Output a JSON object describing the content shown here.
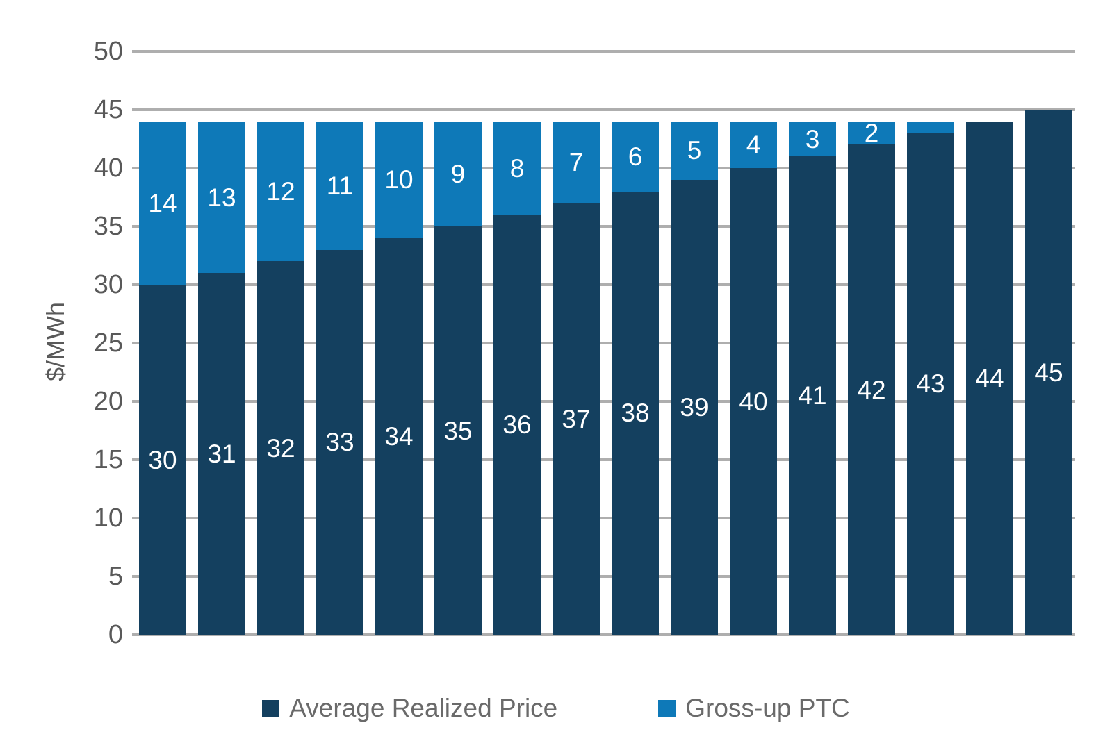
{
  "chart_data": {
    "type": "bar",
    "stacked": true,
    "title": "",
    "xlabel": "",
    "ylabel": "$/MWh",
    "ylim": [
      0,
      50
    ],
    "yticks": [
      0,
      5,
      10,
      15,
      20,
      25,
      30,
      35,
      40,
      45,
      50
    ],
    "grid": "horizontal gridlines every 5, drawn behind bars",
    "legend_position": "bottom-center",
    "bar_label_color": "#FFFFFF",
    "series": [
      {
        "name": "Average Realized Price",
        "color": "#14405F",
        "values": [
          30,
          31,
          32,
          33,
          34,
          35,
          36,
          37,
          38,
          39,
          40,
          41,
          42,
          43,
          44,
          45
        ]
      },
      {
        "name": "Gross-up PTC",
        "color": "#0E79B8",
        "values": [
          14,
          13,
          12,
          11,
          10,
          9,
          8,
          7,
          6,
          5,
          4,
          3,
          2,
          1,
          0,
          0
        ]
      }
    ],
    "styles": {
      "gridline_color": "#AEAEAE",
      "axis_text_color": "#595959",
      "legend_text_color": "#6A6A6A"
    }
  }
}
